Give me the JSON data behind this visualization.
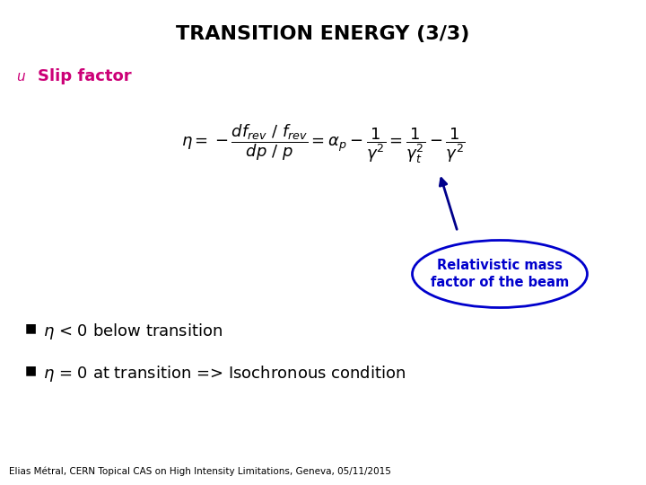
{
  "title": "TRANSITION ENERGY (3/3)",
  "title_fontsize": 16,
  "title_color": "#000000",
  "background_color": "#ffffff",
  "bullet_color": "#000000",
  "heading_color": "#cc0077",
  "heading_text": "Slip factor",
  "bullet1_pre": "$\\eta$ < 0 below transition",
  "bullet2_pre": "$\\eta$ = 0 at transition => Isochronous condition",
  "annotation_text": "Relativistic mass\nfactor of the beam",
  "annotation_color": "#0000cc",
  "arrow_color": "#00008b",
  "footer": "Elias Métral, CERN Topical CAS on High Intensity Limitations, Geneva, 05/11/2015",
  "footer_fontsize": 7.5,
  "footer_color": "#000000",
  "u_marker": "u",
  "u_color": "#cc0077",
  "formula_color": "#000000"
}
